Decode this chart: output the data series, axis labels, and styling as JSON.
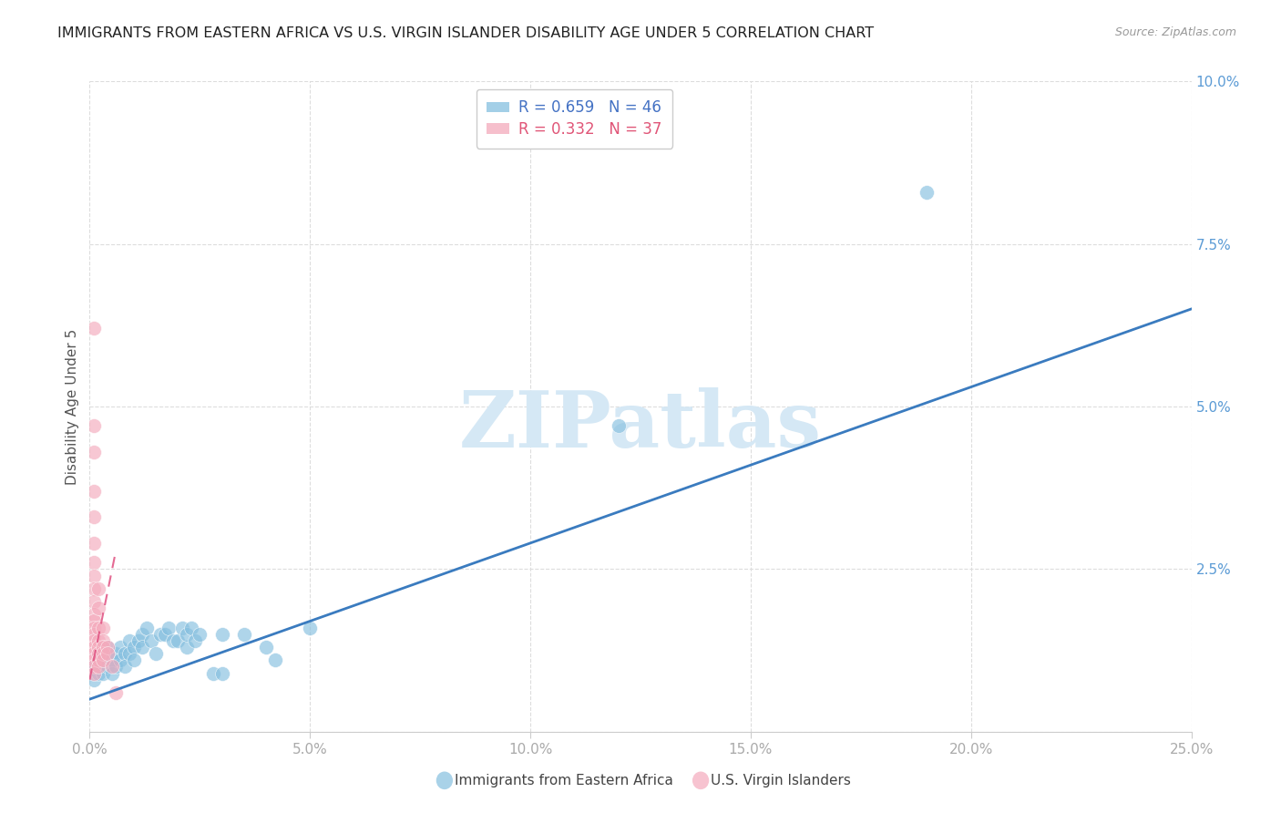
{
  "title": "IMMIGRANTS FROM EASTERN AFRICA VS U.S. VIRGIN ISLANDER DISABILITY AGE UNDER 5 CORRELATION CHART",
  "source": "Source: ZipAtlas.com",
  "ylabel": "Disability Age Under 5",
  "xlim": [
    0.0,
    0.25
  ],
  "ylim": [
    0.0,
    0.1
  ],
  "xticks": [
    0.0,
    0.05,
    0.1,
    0.15,
    0.2,
    0.25
  ],
  "xticklabels": [
    "0.0%",
    "5.0%",
    "10.0%",
    "15.0%",
    "20.0%",
    "25.0%"
  ],
  "yticks_right": [
    0.0,
    0.025,
    0.05,
    0.075,
    0.1
  ],
  "yticklabels_right": [
    "",
    "2.5%",
    "5.0%",
    "7.5%",
    "10.0%"
  ],
  "blue_R": 0.659,
  "blue_N": 46,
  "pink_R": 0.332,
  "pink_N": 37,
  "blue_color": "#85bfdf",
  "pink_color": "#f4aabc",
  "blue_line_color": "#3a7bbf",
  "pink_line_color": "#e05080",
  "blue_scatter": [
    [
      0.001,
      0.01
    ],
    [
      0.001,
      0.008
    ],
    [
      0.002,
      0.012
    ],
    [
      0.002,
      0.009
    ],
    [
      0.003,
      0.011
    ],
    [
      0.003,
      0.009
    ],
    [
      0.004,
      0.013
    ],
    [
      0.004,
      0.01
    ],
    [
      0.005,
      0.011
    ],
    [
      0.005,
      0.009
    ],
    [
      0.006,
      0.012
    ],
    [
      0.006,
      0.01
    ],
    [
      0.007,
      0.013
    ],
    [
      0.007,
      0.011
    ],
    [
      0.008,
      0.012
    ],
    [
      0.008,
      0.01
    ],
    [
      0.009,
      0.014
    ],
    [
      0.009,
      0.012
    ],
    [
      0.01,
      0.013
    ],
    [
      0.01,
      0.011
    ],
    [
      0.011,
      0.014
    ],
    [
      0.012,
      0.015
    ],
    [
      0.012,
      0.013
    ],
    [
      0.013,
      0.016
    ],
    [
      0.014,
      0.014
    ],
    [
      0.015,
      0.012
    ],
    [
      0.016,
      0.015
    ],
    [
      0.017,
      0.015
    ],
    [
      0.018,
      0.016
    ],
    [
      0.019,
      0.014
    ],
    [
      0.02,
      0.014
    ],
    [
      0.021,
      0.016
    ],
    [
      0.022,
      0.013
    ],
    [
      0.022,
      0.015
    ],
    [
      0.023,
      0.016
    ],
    [
      0.024,
      0.014
    ],
    [
      0.025,
      0.015
    ],
    [
      0.028,
      0.009
    ],
    [
      0.03,
      0.015
    ],
    [
      0.03,
      0.009
    ],
    [
      0.035,
      0.015
    ],
    [
      0.04,
      0.013
    ],
    [
      0.042,
      0.011
    ],
    [
      0.05,
      0.016
    ],
    [
      0.12,
      0.047
    ],
    [
      0.19,
      0.083
    ]
  ],
  "pink_scatter": [
    [
      0.001,
      0.062
    ],
    [
      0.001,
      0.047
    ],
    [
      0.001,
      0.043
    ],
    [
      0.001,
      0.037
    ],
    [
      0.001,
      0.033
    ],
    [
      0.001,
      0.029
    ],
    [
      0.001,
      0.026
    ],
    [
      0.001,
      0.024
    ],
    [
      0.001,
      0.022
    ],
    [
      0.001,
      0.02
    ],
    [
      0.001,
      0.018
    ],
    [
      0.001,
      0.017
    ],
    [
      0.001,
      0.016
    ],
    [
      0.001,
      0.015
    ],
    [
      0.001,
      0.014
    ],
    [
      0.001,
      0.013
    ],
    [
      0.001,
      0.012
    ],
    [
      0.001,
      0.011
    ],
    [
      0.001,
      0.01
    ],
    [
      0.001,
      0.009
    ],
    [
      0.002,
      0.022
    ],
    [
      0.002,
      0.019
    ],
    [
      0.002,
      0.016
    ],
    [
      0.002,
      0.014
    ],
    [
      0.002,
      0.013
    ],
    [
      0.002,
      0.012
    ],
    [
      0.002,
      0.011
    ],
    [
      0.002,
      0.01
    ],
    [
      0.003,
      0.016
    ],
    [
      0.003,
      0.014
    ],
    [
      0.003,
      0.013
    ],
    [
      0.003,
      0.012
    ],
    [
      0.003,
      0.011
    ],
    [
      0.004,
      0.013
    ],
    [
      0.004,
      0.012
    ],
    [
      0.005,
      0.01
    ],
    [
      0.006,
      0.006
    ]
  ],
  "blue_line_x": [
    0.0,
    0.25
  ],
  "blue_line_y": [
    0.005,
    0.065
  ],
  "pink_line_x": [
    0.0,
    0.006
  ],
  "pink_line_y": [
    0.008,
    0.028
  ],
  "watermark_text": "ZIPatlas",
  "watermark_color": "#d5e8f5",
  "background_color": "#ffffff",
  "grid_color": "#dddddd",
  "tick_color_x": "#aaaaaa",
  "tick_color_right": "#5b9bd5",
  "title_fontsize": 11.5,
  "axis_label_fontsize": 11,
  "tick_fontsize": 11,
  "legend_text_color_blue": "#4472c4",
  "legend_text_color_pink": "#e05577",
  "bottom_legend_blue_label": "Immigrants from Eastern Africa",
  "bottom_legend_pink_label": "U.S. Virgin Islanders"
}
